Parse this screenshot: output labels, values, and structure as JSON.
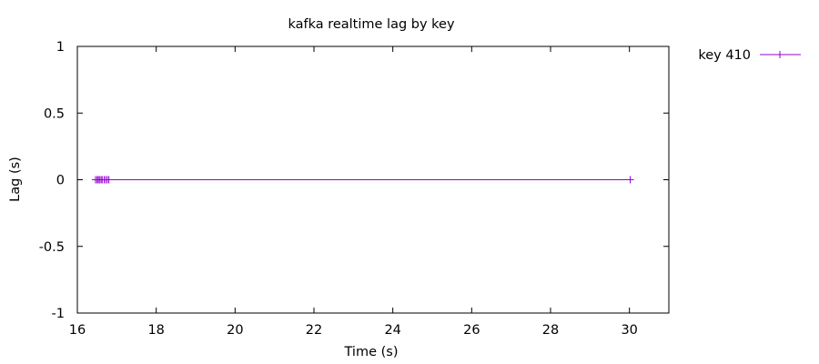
{
  "chart_data": {
    "type": "line",
    "title": "kafka realtime lag by key",
    "xlabel": "Time (s)",
    "ylabel": "Lag (s)",
    "xlim": [
      16,
      31
    ],
    "ylim": [
      -1,
      1
    ],
    "xticks": [
      16,
      18,
      20,
      22,
      24,
      26,
      28,
      30
    ],
    "xtick_labels": [
      "16",
      "18",
      "20",
      "22",
      "24",
      "26",
      "28",
      "30"
    ],
    "yticks": [
      -1,
      -0.5,
      0,
      0.5,
      1
    ],
    "ytick_labels": [
      "-1",
      "-0.5",
      "0",
      "0.5",
      "1"
    ],
    "grid": false,
    "legend_position": "outside-top-right",
    "series": [
      {
        "name": "key 410",
        "color": "#9400d3",
        "marker": "plus",
        "x": [
          16.46,
          16.5,
          16.53,
          16.56,
          16.6,
          16.63,
          16.68,
          16.72,
          16.76,
          16.8,
          30.02
        ],
        "y": [
          0,
          0,
          0,
          0,
          0,
          0,
          0,
          0,
          0,
          0,
          0
        ]
      }
    ]
  }
}
